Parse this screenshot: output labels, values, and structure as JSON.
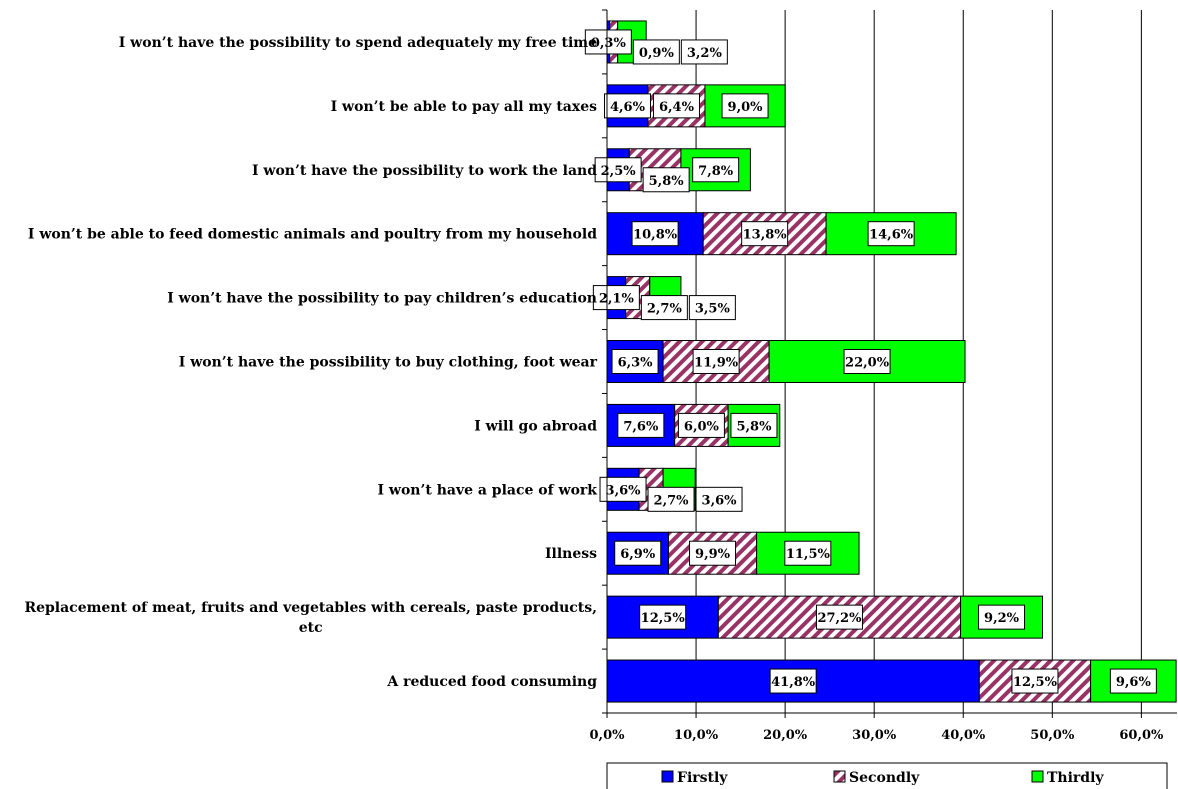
{
  "chart_data": {
    "type": "bar",
    "orientation": "horizontal",
    "stacked": true,
    "categories": [
      "I won’t have the possibility to spend adequately my free time",
      "I won’t be able to pay all my taxes",
      "I won’t have the possibility to work the land",
      "I won’t be able to feed domestic animals and poultry from my household",
      "I won’t have the possibility to pay children’s education",
      "I won’t have the possibility to buy clothing, foot wear",
      "I will go abroad",
      "I won’t have a place of work",
      "Illness",
      "Replacement of meat, fruits and vegetables with cereals, paste products, etc",
      "A reduced food consuming"
    ],
    "series": [
      {
        "name": "Firstly",
        "color": "#0000ff",
        "pattern": "solid",
        "values": [
          0.3,
          4.6,
          2.5,
          10.8,
          2.1,
          6.3,
          7.6,
          3.6,
          6.9,
          12.5,
          41.8
        ],
        "labels": [
          "0,3%",
          "4,6%",
          "2,5%",
          "10,8%",
          "2,1%",
          "6,3%",
          "7,6%",
          "3,6%",
          "6,9%",
          "12,5%",
          "41,8%"
        ]
      },
      {
        "name": "Secondly",
        "color": "#993366",
        "pattern": "diagonal-stripes",
        "values": [
          0.9,
          6.4,
          5.8,
          13.8,
          2.7,
          11.9,
          6.0,
          2.7,
          9.9,
          27.2,
          12.5
        ],
        "labels": [
          "0,9%",
          "6,4%",
          "5,8%",
          "13,8%",
          "2,7%",
          "11,9%",
          "6,0%",
          "2,7%",
          "9,9%",
          "27,2%",
          "12,5%"
        ]
      },
      {
        "name": "Thirdly",
        "color": "#00ff00",
        "pattern": "solid",
        "values": [
          3.2,
          9.0,
          7.8,
          14.6,
          3.5,
          22.0,
          5.8,
          3.6,
          11.5,
          9.2,
          9.6
        ],
        "labels": [
          "3,2%",
          "9,0%",
          "7,8%",
          "14,6%",
          "3,5%",
          "22,0%",
          "5,8%",
          "3,6%",
          "11,5%",
          "9,2%",
          "9,6%"
        ]
      }
    ],
    "xlim": [
      0,
      64
    ],
    "x_ticks": [
      0,
      10,
      20,
      30,
      40,
      50,
      60
    ],
    "x_tick_labels": [
      "0,0%",
      "10,0%",
      "20,0%",
      "30,0%",
      "40,0%",
      "50,0%",
      "60,0%"
    ],
    "grid": "vertical",
    "legend_position": "bottom"
  }
}
